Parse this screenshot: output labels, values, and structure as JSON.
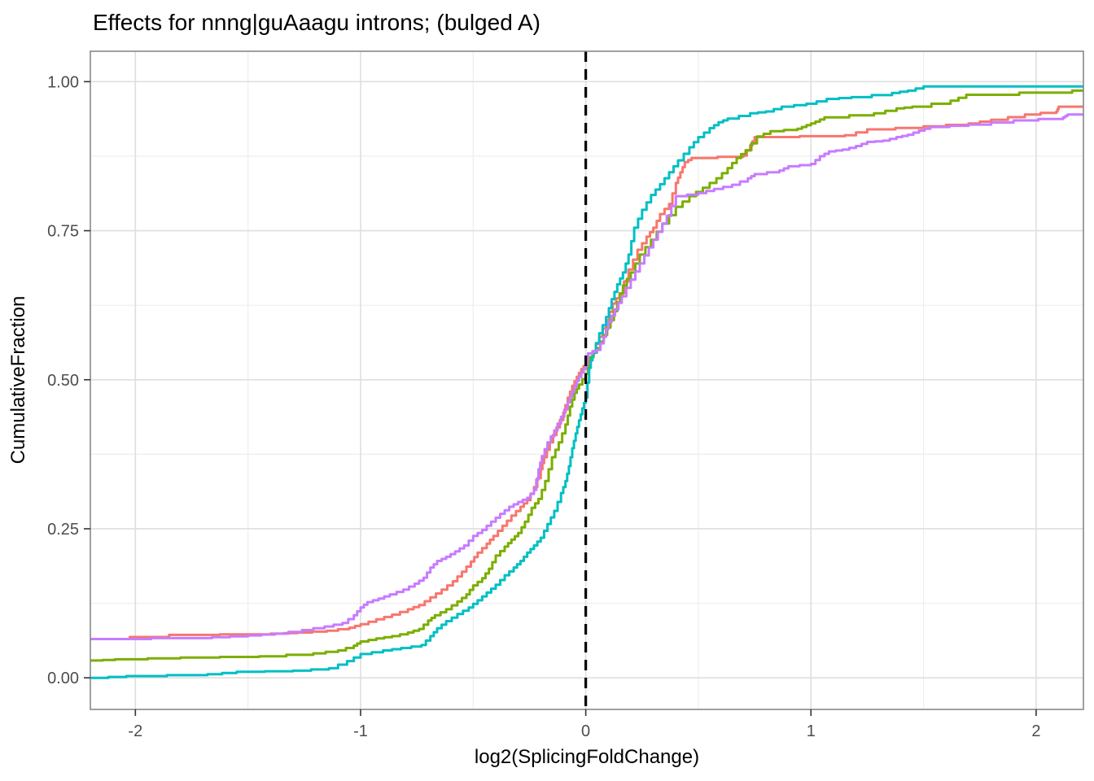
{
  "colors": {
    "panel_background": "#ffffff",
    "panel_border": "#808080",
    "grid_major": "#dedede",
    "grid_minor": "#ededed",
    "axis_tick": "#333333",
    "axis_text": "#4d4d4d",
    "title_text": "#000000",
    "reference_line": "#000000",
    "palette": [
      "#F8766D",
      "#7CAE00",
      "#00BFC4",
      "#C77CFF"
    ]
  },
  "chart_data": {
    "type": "line",
    "subtype": "ecdf_step",
    "title": "Effects for nnng|guAaagu introns; (bulged A)",
    "xlabel": "log2(SplicingFoldChange)",
    "ylabel": "CumulativeFraction",
    "xlim": [
      -2.2,
      2.21
    ],
    "ylim": [
      -0.053,
      1.051
    ],
    "grid": true,
    "legend": "none",
    "x_ticks": {
      "values": [
        -2,
        -1,
        0,
        1,
        2
      ],
      "labels": [
        "-2",
        "-1",
        "0",
        "1",
        "2"
      ],
      "minor": [
        -1.5,
        -0.5,
        0.5,
        1.5
      ]
    },
    "y_ticks": {
      "values": [
        0,
        0.25,
        0.5,
        0.75,
        1
      ],
      "labels": [
        "0.00",
        "0.25",
        "0.50",
        "0.75",
        "1.00"
      ],
      "minor": [
        0.125,
        0.375,
        0.625,
        0.875
      ]
    },
    "reference_line": {
      "x": 0,
      "style": "dashed",
      "color": "#000000",
      "width": 3.2
    },
    "series": [
      {
        "name": "salmon",
        "color": "#F8766D",
        "points": [
          [
            -2.2,
            0.065
          ],
          [
            -1.85,
            0.072
          ],
          [
            -1.4,
            0.074
          ],
          [
            -1.28,
            0.076
          ],
          [
            -1.15,
            0.079
          ],
          [
            -1.05,
            0.084
          ],
          [
            -1.0,
            0.09
          ],
          [
            -0.93,
            0.098
          ],
          [
            -0.86,
            0.106
          ],
          [
            -0.79,
            0.115
          ],
          [
            -0.74,
            0.122
          ],
          [
            -0.69,
            0.135
          ],
          [
            -0.64,
            0.148
          ],
          [
            -0.59,
            0.162
          ],
          [
            -0.55,
            0.178
          ],
          [
            -0.51,
            0.195
          ],
          [
            -0.48,
            0.21
          ],
          [
            -0.44,
            0.225
          ],
          [
            -0.41,
            0.238
          ],
          [
            -0.37,
            0.255
          ],
          [
            -0.33,
            0.272
          ],
          [
            -0.29,
            0.287
          ],
          [
            -0.26,
            0.298
          ],
          [
            -0.23,
            0.32
          ],
          [
            -0.2,
            0.35
          ],
          [
            -0.185,
            0.37
          ],
          [
            -0.16,
            0.395
          ],
          [
            -0.13,
            0.42
          ],
          [
            -0.1,
            0.445
          ],
          [
            -0.08,
            0.47
          ],
          [
            -0.06,
            0.49
          ],
          [
            -0.04,
            0.505
          ],
          [
            -0.02,
            0.518
          ],
          [
            0.0,
            0.528
          ],
          [
            0.03,
            0.548
          ],
          [
            0.06,
            0.572
          ],
          [
            0.09,
            0.6
          ],
          [
            0.12,
            0.628
          ],
          [
            0.15,
            0.645
          ],
          [
            0.19,
            0.685
          ],
          [
            0.23,
            0.718
          ],
          [
            0.27,
            0.74
          ],
          [
            0.3,
            0.755
          ],
          [
            0.33,
            0.778
          ],
          [
            0.37,
            0.795
          ],
          [
            0.4,
            0.83
          ],
          [
            0.42,
            0.848
          ],
          [
            0.44,
            0.865
          ],
          [
            0.47,
            0.872
          ],
          [
            0.7,
            0.876
          ],
          [
            0.73,
            0.893
          ],
          [
            0.75,
            0.907
          ],
          [
            1.15,
            0.91
          ],
          [
            1.25,
            0.92
          ],
          [
            1.5,
            0.925
          ],
          [
            1.7,
            0.93
          ],
          [
            1.8,
            0.936
          ],
          [
            1.95,
            0.945
          ],
          [
            2.09,
            0.95
          ],
          [
            2.1,
            0.958
          ],
          [
            2.21,
            0.958
          ]
        ]
      },
      {
        "name": "olive",
        "color": "#7CAE00",
        "points": [
          [
            -2.2,
            0.029
          ],
          [
            -2.09,
            0.031
          ],
          [
            -1.8,
            0.034
          ],
          [
            -1.45,
            0.036
          ],
          [
            -1.21,
            0.041
          ],
          [
            -1.1,
            0.046
          ],
          [
            -1.03,
            0.054
          ],
          [
            -1.0,
            0.061
          ],
          [
            -0.93,
            0.066
          ],
          [
            -0.86,
            0.07
          ],
          [
            -0.79,
            0.076
          ],
          [
            -0.74,
            0.082
          ],
          [
            -0.7,
            0.096
          ],
          [
            -0.67,
            0.105
          ],
          [
            -0.62,
            0.115
          ],
          [
            -0.57,
            0.128
          ],
          [
            -0.53,
            0.14
          ],
          [
            -0.5,
            0.155
          ],
          [
            -0.46,
            0.167
          ],
          [
            -0.43,
            0.183
          ],
          [
            -0.4,
            0.205
          ],
          [
            -0.36,
            0.22
          ],
          [
            -0.33,
            0.232
          ],
          [
            -0.3,
            0.243
          ],
          [
            -0.27,
            0.262
          ],
          [
            -0.24,
            0.285
          ],
          [
            -0.21,
            0.3
          ],
          [
            -0.18,
            0.33
          ],
          [
            -0.15,
            0.37
          ],
          [
            -0.12,
            0.395
          ],
          [
            -0.09,
            0.425
          ],
          [
            -0.07,
            0.455
          ],
          [
            -0.05,
            0.478
          ],
          [
            -0.03,
            0.492
          ],
          [
            0.0,
            0.51
          ],
          [
            0.02,
            0.538
          ],
          [
            0.05,
            0.553
          ],
          [
            0.08,
            0.575
          ],
          [
            0.11,
            0.6
          ],
          [
            0.14,
            0.63
          ],
          [
            0.165,
            0.658
          ],
          [
            0.2,
            0.68
          ],
          [
            0.24,
            0.71
          ],
          [
            0.29,
            0.735
          ],
          [
            0.34,
            0.762
          ],
          [
            0.4,
            0.79
          ],
          [
            0.46,
            0.808
          ],
          [
            0.52,
            0.822
          ],
          [
            0.58,
            0.838
          ],
          [
            0.63,
            0.855
          ],
          [
            0.67,
            0.872
          ],
          [
            0.71,
            0.885
          ],
          [
            0.76,
            0.908
          ],
          [
            0.82,
            0.917
          ],
          [
            0.94,
            0.921
          ],
          [
            0.98,
            0.927
          ],
          [
            1.02,
            0.933
          ],
          [
            1.06,
            0.94
          ],
          [
            1.28,
            0.947
          ],
          [
            1.38,
            0.955
          ],
          [
            1.45,
            0.958
          ],
          [
            1.62,
            0.968
          ],
          [
            1.69,
            0.978
          ],
          [
            2.16,
            0.985
          ],
          [
            2.21,
            0.985
          ]
        ]
      },
      {
        "name": "teal",
        "color": "#00BFC4",
        "points": [
          [
            -2.2,
            0.0
          ],
          [
            -2.04,
            0.003
          ],
          [
            -1.68,
            0.006
          ],
          [
            -1.55,
            0.01
          ],
          [
            -1.3,
            0.012
          ],
          [
            -1.14,
            0.016
          ],
          [
            -1.06,
            0.028
          ],
          [
            -1.0,
            0.04
          ],
          [
            -0.9,
            0.046
          ],
          [
            -0.82,
            0.05
          ],
          [
            -0.73,
            0.055
          ],
          [
            -0.69,
            0.07
          ],
          [
            -0.66,
            0.083
          ],
          [
            -0.62,
            0.095
          ],
          [
            -0.57,
            0.107
          ],
          [
            -0.52,
            0.118
          ],
          [
            -0.48,
            0.13
          ],
          [
            -0.44,
            0.143
          ],
          [
            -0.4,
            0.156
          ],
          [
            -0.36,
            0.172
          ],
          [
            -0.32,
            0.185
          ],
          [
            -0.29,
            0.196
          ],
          [
            -0.26,
            0.21
          ],
          [
            -0.23,
            0.222
          ],
          [
            -0.2,
            0.235
          ],
          [
            -0.17,
            0.258
          ],
          [
            -0.14,
            0.28
          ],
          [
            -0.11,
            0.31
          ],
          [
            -0.09,
            0.33
          ],
          [
            -0.075,
            0.355
          ],
          [
            -0.06,
            0.385
          ],
          [
            -0.045,
            0.41
          ],
          [
            -0.03,
            0.432
          ],
          [
            -0.015,
            0.452
          ],
          [
            0.0,
            0.47
          ],
          [
            0.015,
            0.52
          ],
          [
            0.03,
            0.545
          ],
          [
            0.06,
            0.578
          ],
          [
            0.09,
            0.605
          ],
          [
            0.115,
            0.635
          ],
          [
            0.14,
            0.66
          ],
          [
            0.165,
            0.68
          ],
          [
            0.19,
            0.71
          ],
          [
            0.215,
            0.755
          ],
          [
            0.25,
            0.785
          ],
          [
            0.29,
            0.81
          ],
          [
            0.33,
            0.828
          ],
          [
            0.37,
            0.848
          ],
          [
            0.41,
            0.868
          ],
          [
            0.46,
            0.89
          ],
          [
            0.5,
            0.907
          ],
          [
            0.55,
            0.922
          ],
          [
            0.59,
            0.932
          ],
          [
            0.63,
            0.938
          ],
          [
            0.73,
            0.947
          ],
          [
            0.8,
            0.95
          ],
          [
            0.87,
            0.958
          ],
          [
            0.98,
            0.963
          ],
          [
            1.07,
            0.971
          ],
          [
            1.18,
            0.974
          ],
          [
            1.36,
            0.981
          ],
          [
            1.43,
            0.985
          ],
          [
            1.5,
            0.992
          ],
          [
            2.21,
            0.992
          ]
        ]
      },
      {
        "name": "purple",
        "color": "#C77CFF",
        "points": [
          [
            -2.2,
            0.065
          ],
          [
            -1.66,
            0.068
          ],
          [
            -1.5,
            0.071
          ],
          [
            -1.38,
            0.074
          ],
          [
            -1.26,
            0.08
          ],
          [
            -1.16,
            0.086
          ],
          [
            -1.08,
            0.092
          ],
          [
            -1.03,
            0.105
          ],
          [
            -1.0,
            0.118
          ],
          [
            -0.97,
            0.127
          ],
          [
            -0.92,
            0.133
          ],
          [
            -0.87,
            0.14
          ],
          [
            -0.81,
            0.148
          ],
          [
            -0.76,
            0.158
          ],
          [
            -0.72,
            0.168
          ],
          [
            -0.69,
            0.185
          ],
          [
            -0.66,
            0.196
          ],
          [
            -0.62,
            0.203
          ],
          [
            -0.58,
            0.212
          ],
          [
            -0.54,
            0.222
          ],
          [
            -0.5,
            0.238
          ],
          [
            -0.46,
            0.248
          ],
          [
            -0.42,
            0.262
          ],
          [
            -0.38,
            0.275
          ],
          [
            -0.34,
            0.287
          ],
          [
            -0.3,
            0.295
          ],
          [
            -0.26,
            0.302
          ],
          [
            -0.23,
            0.315
          ],
          [
            -0.21,
            0.35
          ],
          [
            -0.195,
            0.372
          ],
          [
            -0.17,
            0.395
          ],
          [
            -0.14,
            0.415
          ],
          [
            -0.11,
            0.438
          ],
          [
            -0.08,
            0.462
          ],
          [
            -0.06,
            0.48
          ],
          [
            -0.04,
            0.498
          ],
          [
            -0.02,
            0.512
          ],
          [
            0.0,
            0.524
          ],
          [
            0.01,
            0.544
          ],
          [
            0.05,
            0.55
          ],
          [
            0.08,
            0.572
          ],
          [
            0.1,
            0.597
          ],
          [
            0.13,
            0.618
          ],
          [
            0.16,
            0.64
          ],
          [
            0.2,
            0.668
          ],
          [
            0.24,
            0.695
          ],
          [
            0.28,
            0.722
          ],
          [
            0.32,
            0.748
          ],
          [
            0.36,
            0.775
          ],
          [
            0.4,
            0.808
          ],
          [
            0.5,
            0.813
          ],
          [
            0.57,
            0.82
          ],
          [
            0.65,
            0.827
          ],
          [
            0.72,
            0.838
          ],
          [
            0.75,
            0.845
          ],
          [
            0.86,
            0.851
          ],
          [
            0.9,
            0.858
          ],
          [
            1.0,
            0.862
          ],
          [
            1.04,
            0.875
          ],
          [
            1.08,
            0.883
          ],
          [
            1.14,
            0.886
          ],
          [
            1.2,
            0.892
          ],
          [
            1.25,
            0.899
          ],
          [
            1.32,
            0.901
          ],
          [
            1.38,
            0.907
          ],
          [
            1.43,
            0.911
          ],
          [
            1.48,
            0.918
          ],
          [
            1.53,
            0.924
          ],
          [
            1.7,
            0.928
          ],
          [
            1.9,
            0.935
          ],
          [
            2.12,
            0.94
          ],
          [
            2.14,
            0.945
          ],
          [
            2.21,
            0.945
          ]
        ]
      }
    ]
  }
}
